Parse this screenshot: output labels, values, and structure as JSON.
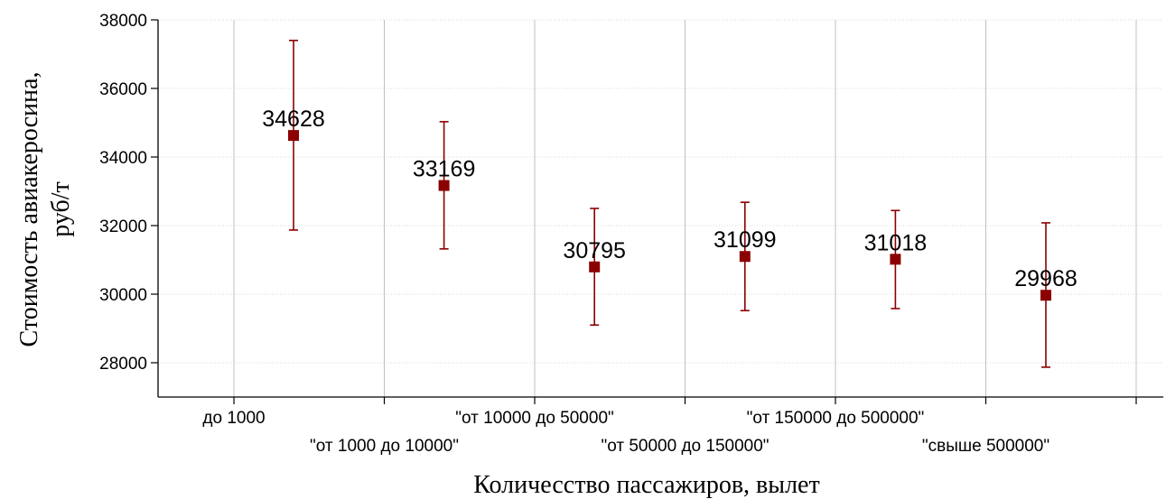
{
  "chart_data": {
    "type": "scatter",
    "title": "",
    "xlabel": "Количесство  пассажиров, вылет",
    "ylabel": [
      "Стоимость авиакеросина,",
      "руб/т"
    ],
    "ylim": [
      27000,
      38000
    ],
    "yticks": [
      "28000",
      "30000",
      "32000",
      "34000",
      "36000",
      "38000"
    ],
    "grid": true,
    "categories": [
      "до 1000",
      "\"от 1000 до 10000\"",
      "\"от 10000 до 50000\"",
      "\"от 50000 до 150000\"",
      "\"от 150000 до 500000\"",
      "\"свыше 500000\""
    ],
    "series": [
      {
        "values": [
          34628,
          33169,
          30795,
          31099,
          31018,
          29968
        ],
        "labels": [
          "34628",
          "33169",
          "30795",
          "31099",
          "31018",
          "29968"
        ],
        "error_low": [
          31870,
          31320,
          29100,
          29520,
          29580,
          27870
        ],
        "error_high": [
          37400,
          35030,
          32500,
          32680,
          32440,
          32080
        ]
      }
    ],
    "colors": {
      "marker": "#8b0000",
      "errorbar": "#8b0000",
      "grid": "#c0c0c0",
      "axis": "#000000"
    }
  }
}
